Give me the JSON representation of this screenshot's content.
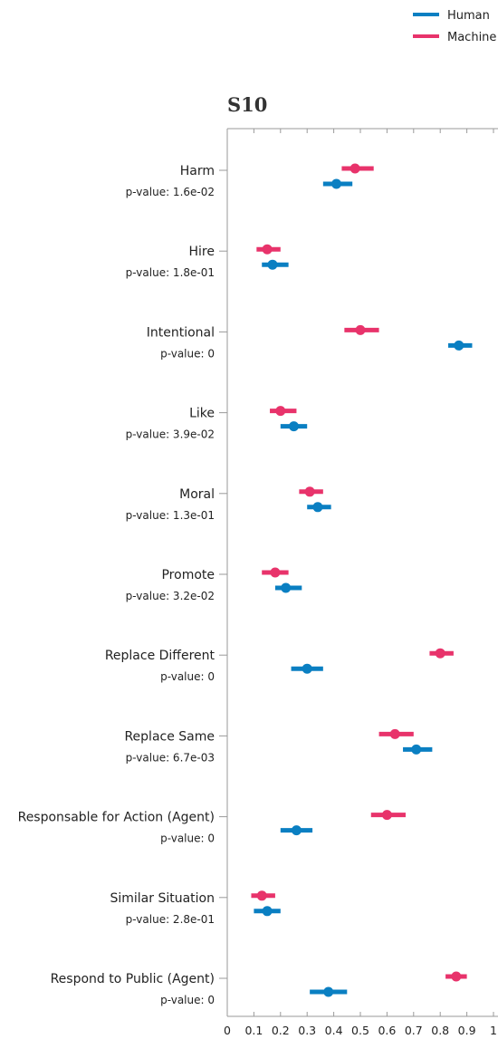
{
  "chart_data": {
    "type": "scatter",
    "title": "S10",
    "xlim": [
      0,
      1
    ],
    "x_ticks": [
      "0",
      "0.1",
      "0.2",
      "0.3",
      "0.4",
      "0.5",
      "0.6",
      "0.7",
      "0.8",
      "0.9",
      "1"
    ],
    "legend": {
      "placement": "top-right",
      "entries": [
        {
          "name": "Human",
          "color": "#0a7fc2"
        },
        {
          "name": "Machine",
          "color": "#e8336b"
        }
      ]
    },
    "categories": [
      {
        "label": "Harm",
        "pvalue": "p-value: 1.6e-02",
        "machine": {
          "mean": 0.48,
          "lo": 0.43,
          "hi": 0.55
        },
        "human": {
          "mean": 0.41,
          "lo": 0.36,
          "hi": 0.47
        }
      },
      {
        "label": "Hire",
        "pvalue": "p-value: 1.8e-01",
        "machine": {
          "mean": 0.15,
          "lo": 0.11,
          "hi": 0.2
        },
        "human": {
          "mean": 0.17,
          "lo": 0.13,
          "hi": 0.23
        }
      },
      {
        "label": "Intentional",
        "pvalue": "p-value: 0",
        "machine": {
          "mean": 0.5,
          "lo": 0.44,
          "hi": 0.57
        },
        "human": {
          "mean": 0.87,
          "lo": 0.83,
          "hi": 0.92
        }
      },
      {
        "label": "Like",
        "pvalue": "p-value: 3.9e-02",
        "machine": {
          "mean": 0.2,
          "lo": 0.16,
          "hi": 0.26
        },
        "human": {
          "mean": 0.25,
          "lo": 0.2,
          "hi": 0.3
        }
      },
      {
        "label": "Moral",
        "pvalue": "p-value: 1.3e-01",
        "machine": {
          "mean": 0.31,
          "lo": 0.27,
          "hi": 0.36
        },
        "human": {
          "mean": 0.34,
          "lo": 0.3,
          "hi": 0.39
        }
      },
      {
        "label": "Promote",
        "pvalue": "p-value: 3.2e-02",
        "machine": {
          "mean": 0.18,
          "lo": 0.13,
          "hi": 0.23
        },
        "human": {
          "mean": 0.22,
          "lo": 0.18,
          "hi": 0.28
        }
      },
      {
        "label": "Replace Different",
        "pvalue": "p-value: 0",
        "machine": {
          "mean": 0.8,
          "lo": 0.76,
          "hi": 0.85
        },
        "human": {
          "mean": 0.3,
          "lo": 0.24,
          "hi": 0.36
        }
      },
      {
        "label": "Replace Same",
        "pvalue": "p-value: 6.7e-03",
        "machine": {
          "mean": 0.63,
          "lo": 0.57,
          "hi": 0.7
        },
        "human": {
          "mean": 0.71,
          "lo": 0.66,
          "hi": 0.77
        }
      },
      {
        "label": "Responsable for Action (Agent)",
        "pvalue": "p-value: 0",
        "machine": {
          "mean": 0.6,
          "lo": 0.54,
          "hi": 0.67
        },
        "human": {
          "mean": 0.26,
          "lo": 0.2,
          "hi": 0.32
        }
      },
      {
        "label": "Similar Situation",
        "pvalue": "p-value: 2.8e-01",
        "machine": {
          "mean": 0.13,
          "lo": 0.09,
          "hi": 0.18
        },
        "human": {
          "mean": 0.15,
          "lo": 0.1,
          "hi": 0.2
        }
      },
      {
        "label": "Respond to Public (Agent)",
        "pvalue": "p-value: 0",
        "machine": {
          "mean": 0.86,
          "lo": 0.82,
          "hi": 0.9
        },
        "human": {
          "mean": 0.38,
          "lo": 0.31,
          "hi": 0.45
        }
      }
    ]
  }
}
